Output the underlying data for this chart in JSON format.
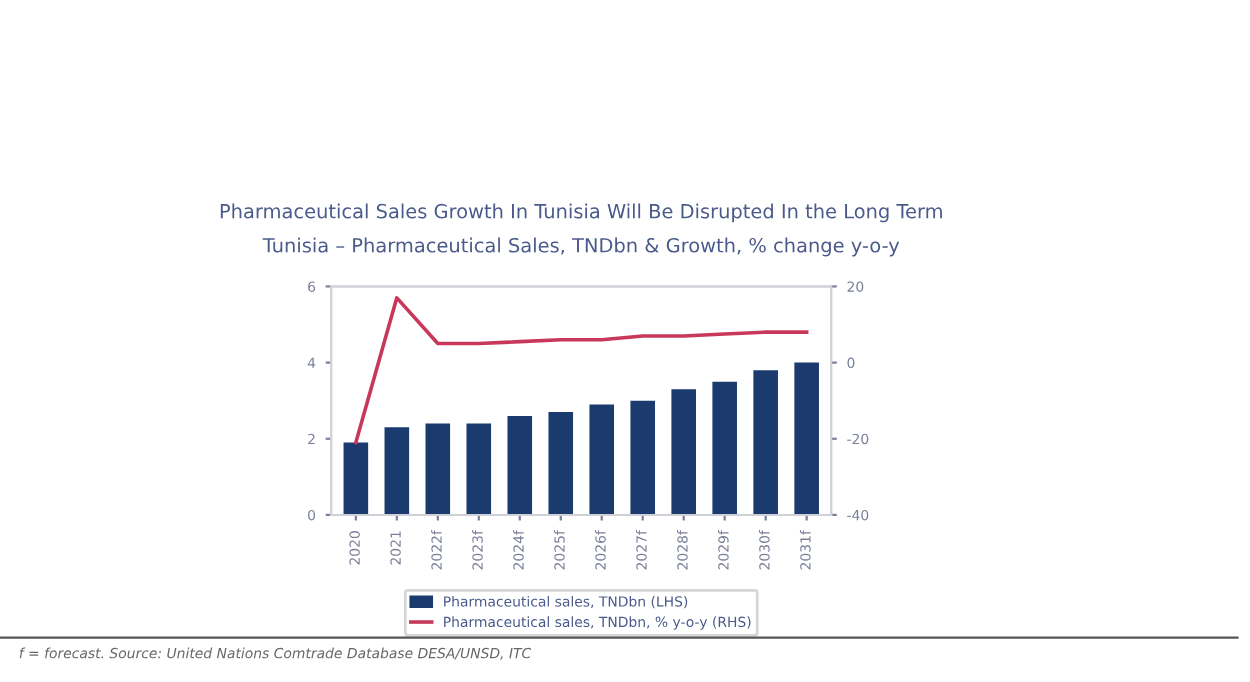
{
  "chart_data": {
    "type": "bar",
    "title": "Pharmaceutical Sales Growth In Tunisia Will Be Disrupted In the Long Term",
    "subtitle": "Tunisia – Pharmaceutical Sales, TNDbn & Growth, % change y-o-y",
    "annotations": [
      "f = forecast. Source: United Nations Comtrade Database DESA/UNSD, ITC"
    ],
    "categories": [
      "2020",
      "2021",
      "2022f",
      "2023f",
      "2024f",
      "2025f",
      "2026f",
      "2027f",
      "2028f",
      "2029f",
      "2030f",
      "2031f"
    ],
    "series": [
      {
        "name": "Pharmaceutical sales, TNDbn (LHS)",
        "color": "#1b3a6e",
        "values": [
          1.9,
          2.3,
          2.4,
          2.4,
          2.6,
          2.7,
          2.9,
          3.0,
          3.3,
          3.5,
          3.8,
          4.0
        ]
      },
      {
        "name": "Pharmaceutical sales, TNDbn, % y-o-y (RHS)",
        "type": "line",
        "axis": "y2",
        "color": "#c8385a",
        "values": [
          -21,
          17,
          5,
          5,
          5.5,
          6,
          6,
          7,
          7,
          7.5,
          8,
          8
        ]
      }
    ],
    "ylim": [
      0,
      6
    ],
    "yticks": [
      0,
      2,
      4,
      6
    ],
    "y2lim": [
      -40,
      20
    ],
    "y2ticks": [
      -40,
      -20,
      0,
      20
    ],
    "grid": false,
    "legend": "bottom",
    "marker": "none",
    "line_style": "solid"
  }
}
